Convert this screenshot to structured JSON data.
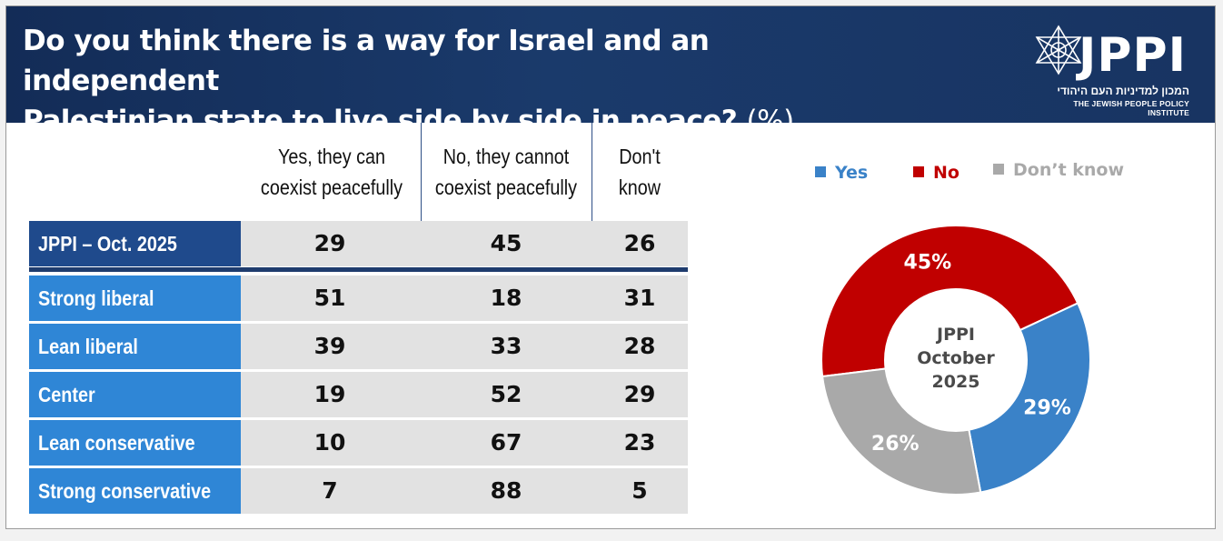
{
  "header": {
    "title_line1": "Do you think there is a way for Israel and an independent",
    "title_line2": "Palestinian state to live side by side in peace?",
    "title_unit": "(%)",
    "logo_text": "JPPI",
    "logo_hebrew": "המכון למדיניות העם היהודי",
    "logo_english": "THE JEWISH PEOPLE POLICY INSTITUTE",
    "icon": "star-of-david-icon"
  },
  "colors": {
    "header_bg": "#1a3a6b",
    "row_label_bg": "#2f86d6",
    "jppi_label_bg": "#1f4a8c",
    "cell_bg": "#e2e2e2",
    "yes": "#3a82c8",
    "no": "#c00000",
    "dont_know": "#a9a9a9"
  },
  "table": {
    "columns": [
      {
        "line1": "Yes, they can",
        "line2": "coexist peacefully"
      },
      {
        "line1": "No, they cannot",
        "line2": "coexist peacefully"
      },
      {
        "line1": "Don't",
        "line2": "know"
      }
    ],
    "rows": [
      {
        "label": "JPPI – Oct. 2025",
        "values": [
          "29",
          "45",
          "26"
        ]
      },
      {
        "label": "Strong liberal",
        "values": [
          "51",
          "18",
          "31"
        ]
      },
      {
        "label": "Lean liberal",
        "values": [
          "39",
          "33",
          "28"
        ]
      },
      {
        "label": "Center",
        "values": [
          "19",
          "52",
          "29"
        ]
      },
      {
        "label": "Lean conservative",
        "values": [
          "10",
          "67",
          "23"
        ]
      },
      {
        "label": "Strong conservative",
        "values": [
          "7",
          "88",
          "5"
        ]
      }
    ]
  },
  "chart_data": {
    "type": "pie",
    "donut": true,
    "center_label": [
      "JPPI",
      "October",
      "2025"
    ],
    "legend_position": "top",
    "slices": [
      {
        "name": "Yes",
        "value": 29,
        "label": "29%",
        "color": "#3a82c8"
      },
      {
        "name": "No",
        "value": 45,
        "label": "45%",
        "color": "#c00000"
      },
      {
        "name": "Don’t know",
        "value": 26,
        "label": "26%",
        "color": "#a9a9a9"
      }
    ]
  }
}
